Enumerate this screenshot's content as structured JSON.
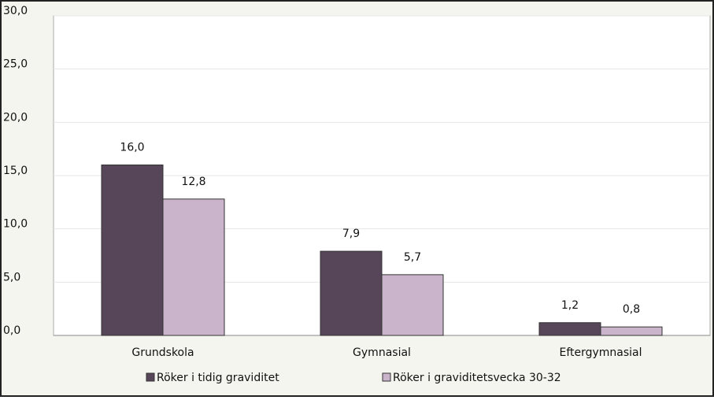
{
  "chart_data": {
    "type": "bar",
    "categories": [
      "Grundskola",
      "Gymnasial",
      "Eftergymnasial"
    ],
    "series": [
      {
        "name": "Röker i tidig graviditet",
        "color": "#574559",
        "values": [
          16.0,
          7.9,
          1.2
        ],
        "value_labels": [
          "16,0",
          "7,9",
          "1,2"
        ]
      },
      {
        "name": "Röker i graviditetsvecka 30-32",
        "color": "#c9b4cc",
        "values": [
          12.8,
          5.7,
          0.8
        ],
        "value_labels": [
          "12,8",
          "5,7",
          "0,8"
        ]
      }
    ],
    "ylim": [
      0,
      30
    ],
    "yticks": [
      {
        "value": 0,
        "label": "0,0"
      },
      {
        "value": 5,
        "label": "5,0"
      },
      {
        "value": 10,
        "label": "10,0"
      },
      {
        "value": 15,
        "label": "15,0"
      },
      {
        "value": 20,
        "label": "20,0"
      },
      {
        "value": 25,
        "label": "25,0"
      },
      {
        "value": 30,
        "label": "30,0"
      }
    ],
    "grid": true,
    "legend": "bottom"
  }
}
